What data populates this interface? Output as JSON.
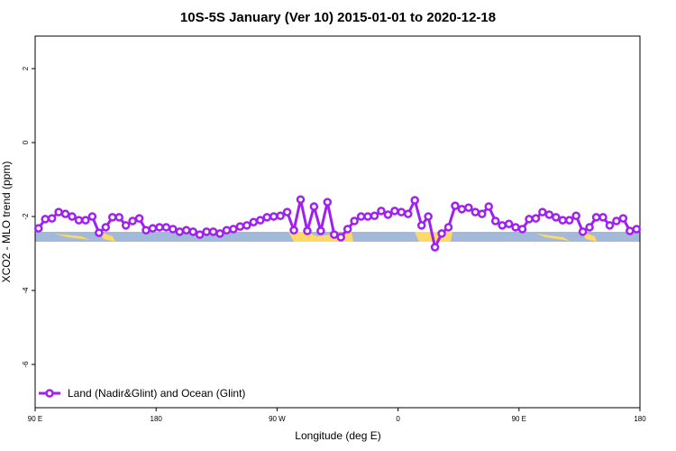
{
  "chart_data": {
    "type": "line",
    "title": "10S-5S January (Ver 10)   2015-01-01 to 2020-12-18",
    "x_label": "Longitude (deg E)",
    "y_label": "XCO2 - MLO trend (ppm)",
    "xlim": [
      90,
      540
    ],
    "ylim": [
      -7.17,
      2.88
    ],
    "xticks": [
      {
        "value": 90,
        "label": "90 E"
      },
      180,
      {
        "value": 270,
        "label": "90 W"
      },
      {
        "value": 360,
        "label": "0"
      },
      {
        "value": 450,
        "label": "90 E"
      },
      {
        "value": 540,
        "label": "180"
      }
    ],
    "yticks": [
      2,
      0,
      -2,
      -4,
      -6
    ],
    "legend": "bottom-left",
    "x": [
      92.5,
      97.5,
      102.5,
      107.5,
      112.5,
      117.5,
      122.5,
      127.5,
      132.5,
      137.5,
      142.5,
      147.5,
      152.5,
      157.5,
      162.5,
      167.5,
      172.5,
      177.5,
      182.5,
      187.5,
      192.5,
      197.5,
      202.5,
      207.5,
      212.5,
      217.5,
      222.5,
      227.5,
      232.5,
      237.5,
      242.5,
      247.5,
      252.5,
      257.5,
      262.5,
      267.5,
      272.5,
      277.5,
      282.5,
      287.5,
      292.5,
      297.5,
      302.5,
      307.5,
      312.5,
      317.5,
      322.5,
      327.5,
      332.5,
      337.5,
      342.5,
      347.5,
      352.5,
      357.5,
      362.5,
      367.5,
      372.5,
      377.5,
      382.5,
      387.5,
      392.5,
      397.5,
      402.5,
      407.5,
      412.5,
      417.5,
      422.5,
      427.5,
      432.5,
      437.5,
      442.5,
      447.5,
      452.5,
      457.5,
      462.5,
      467.5,
      472.5,
      477.5,
      482.5,
      487.5,
      492.5,
      497.5,
      502.5,
      507.5,
      512.5,
      517.5,
      522.5,
      527.5,
      532.5,
      537.5
    ],
    "series": [
      {
        "name": "Land (Nadir&Glint) and Ocean (Glint)",
        "color": "#a020f0",
        "values": [
          -2.32,
          -2.07,
          -2.05,
          -1.88,
          -1.93,
          -2.0,
          -2.1,
          -2.1,
          -2.0,
          -2.44,
          -2.29,
          -2.02,
          -2.02,
          -2.24,
          -2.12,
          -2.05,
          -2.37,
          -2.32,
          -2.29,
          -2.29,
          -2.34,
          -2.41,
          -2.37,
          -2.41,
          -2.49,
          -2.41,
          -2.41,
          -2.46,
          -2.37,
          -2.34,
          -2.27,
          -2.24,
          -2.15,
          -2.1,
          -2.02,
          -2.0,
          -1.98,
          -1.88,
          -2.37,
          -1.54,
          -2.39,
          -1.73,
          -2.39,
          -1.61,
          -2.49,
          -2.56,
          -2.34,
          -2.12,
          -2.0,
          -2.0,
          -1.98,
          -1.85,
          -1.95,
          -1.85,
          -1.88,
          -1.93,
          -1.56,
          -2.24,
          -2.0,
          -2.83,
          -2.46,
          -2.29,
          -1.71,
          -1.8,
          -1.76,
          -1.88,
          -1.93,
          -1.73,
          -2.12,
          -2.24,
          -2.2,
          -2.29,
          -2.34,
          -2.07,
          -2.05,
          -1.88,
          -1.95,
          -2.02,
          -2.1,
          -2.1,
          -1.98,
          -2.41,
          -2.29,
          -2.02,
          -2.02,
          -2.24,
          -2.12,
          -2.05,
          -2.39,
          -2.34
        ]
      }
    ]
  }
}
